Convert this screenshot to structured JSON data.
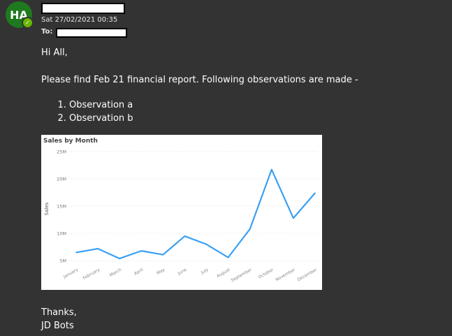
{
  "sender": {
    "initials": "HA",
    "timestamp": "Sat 27/02/2021 00:35",
    "to_label": "To:"
  },
  "message": {
    "greeting": "Hi All,",
    "intro": "Please find Feb 21 financial report. Following observations are made -",
    "observations": [
      "Observation a",
      "Observation b"
    ],
    "signoff": "Thanks,",
    "signature": "JD Bots"
  },
  "colors": {
    "background": "#333333",
    "avatar": "#1f7a1f",
    "presence": "#6bb700",
    "line": "#3aa0f3"
  },
  "icons": {
    "presence": "checkmark-icon"
  },
  "chart_data": {
    "type": "line",
    "title": "Sales by Month",
    "xlabel": "",
    "ylabel": "Sales",
    "categories": [
      "January",
      "February",
      "March",
      "April",
      "May",
      "June",
      "July",
      "August",
      "September",
      "October",
      "November",
      "December"
    ],
    "values": [
      6.5,
      7.2,
      5.4,
      6.8,
      6.1,
      9.5,
      8.0,
      5.6,
      10.8,
      21.7,
      12.8,
      17.4
    ],
    "yticks": [
      "5M",
      "10M",
      "15M",
      "20M",
      "25M"
    ],
    "ytick_values": [
      5,
      10,
      15,
      20,
      25
    ],
    "ylim": [
      4,
      25
    ],
    "grid": true
  }
}
